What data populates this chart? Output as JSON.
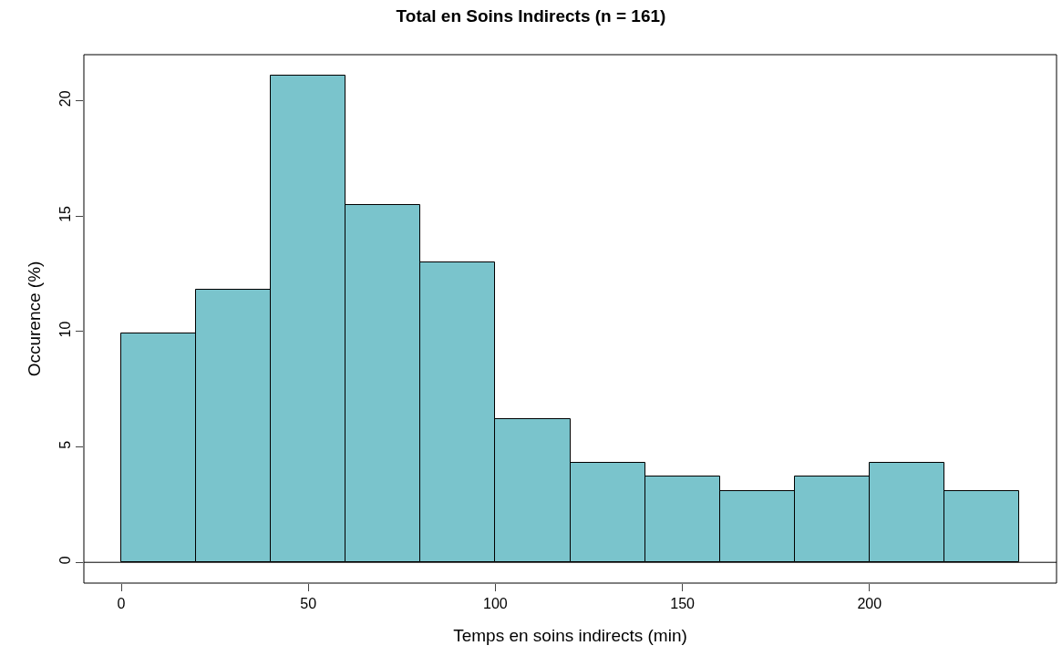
{
  "chart_data": {
    "type": "histogram",
    "title": "Total en Soins Indirects (n = 161)",
    "xlabel": "Temps en soins indirects (min)",
    "ylabel": "Occurence (%)",
    "bins": [
      0,
      20,
      40,
      60,
      80,
      100,
      120,
      140,
      160,
      180,
      200,
      220,
      240
    ],
    "values": [
      9.9,
      11.8,
      21.1,
      15.5,
      13.0,
      6.2,
      4.3,
      3.7,
      3.1,
      3.7,
      4.3,
      3.1
    ],
    "color": "#7ac4cc",
    "xlim": [
      -10,
      250
    ],
    "xticks": [
      0,
      50,
      100,
      150,
      200
    ],
    "ylim": [
      -0.9,
      22
    ],
    "yticks": [
      0,
      5,
      10,
      15,
      20
    ],
    "ref_lines": [
      {
        "axis": "y",
        "value": 0,
        "color": "#000000"
      }
    ],
    "grid": false,
    "legend": false
  }
}
